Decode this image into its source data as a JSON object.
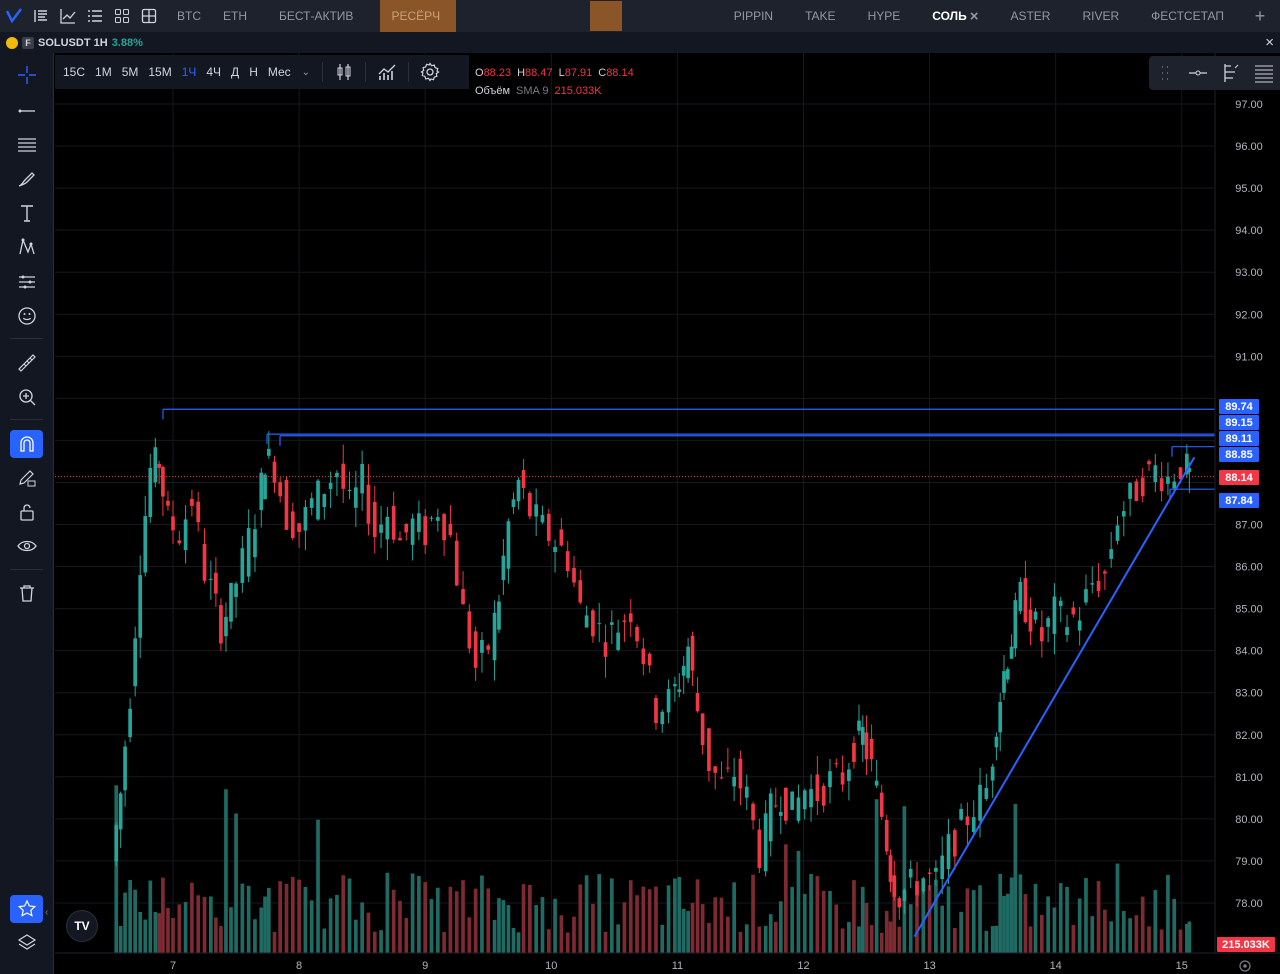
{
  "tabs": {
    "left": [
      {
        "label": "BTC",
        "state": ""
      },
      {
        "label": "ETH",
        "state": ""
      },
      {
        "label": "БЕСТ-АКТИВ",
        "state": ""
      },
      {
        "label": "РЕСЁРЧ",
        "state": "highlight"
      }
    ],
    "right": [
      {
        "label": "PIPPIN",
        "state": ""
      },
      {
        "label": "TAKE",
        "state": ""
      },
      {
        "label": "HYPE",
        "state": ""
      },
      {
        "label": "СОЛЬ",
        "state": "active"
      },
      {
        "label": "ASTER",
        "state": ""
      },
      {
        "label": "RIVER",
        "state": ""
      },
      {
        "label": "ФЕСТСЕТАП",
        "state": ""
      }
    ],
    "close_glyph": "×",
    "plus_glyph": "+"
  },
  "symbol": {
    "badge": "F",
    "name": "SOLUSDT 1H",
    "change": "3.88%",
    "close_glyph": "×"
  },
  "toolbar": {
    "intervals": [
      {
        "label": "15С",
        "active": false
      },
      {
        "label": "1М",
        "active": false
      },
      {
        "label": "5М",
        "active": false
      },
      {
        "label": "15М",
        "active": false
      },
      {
        "label": "1Ч",
        "active": true
      },
      {
        "label": "4Ч",
        "active": false
      },
      {
        "label": "Д",
        "active": false
      },
      {
        "label": "Н",
        "active": false
      },
      {
        "label": "Мес",
        "active": false
      }
    ],
    "icons": [
      "candles-icon",
      "indicators-icon",
      "settings-icon"
    ]
  },
  "legend": {
    "o_label": "O",
    "o_value": "88.23",
    "h_label": "H",
    "h_value": "88.47",
    "l_label": "L",
    "l_value": "87.91",
    "c_label": "C",
    "c_value": "88.14",
    "volume_label": "Объём",
    "sma_label": "SMA 9",
    "volume_value": "215.033K"
  },
  "tv_logo": "TV",
  "colors": {
    "up": "#26a69a",
    "down": "#f23645",
    "upvol": "#1f6b63",
    "downvol": "#7d2a33",
    "line": "#2962ff",
    "accent": "#8a5527"
  },
  "chart_data": {
    "type": "candlestick",
    "symbol": "SOLUSDT",
    "interval": "1H",
    "x_ticks": [
      "7",
      "8",
      "9",
      "10",
      "11",
      "12",
      "13",
      "14",
      "15"
    ],
    "y_ticks": [
      "97.00",
      "96.00",
      "95.00",
      "94.00",
      "93.00",
      "92.00",
      "91.00",
      "87.00",
      "86.00",
      "85.00",
      "84.00",
      "83.00",
      "82.00",
      "81.00",
      "80.00",
      "79.00",
      "78.00"
    ],
    "ylim": [
      77.0,
      98.0
    ],
    "horizontal_lines": [
      {
        "value": 89.74,
        "label": "89.74"
      },
      {
        "value": 89.15,
        "label": "89.15"
      },
      {
        "value": 89.11,
        "label": "89.11"
      },
      {
        "value": 88.85,
        "label": "88.85"
      },
      {
        "value": 87.84,
        "label": "87.84"
      }
    ],
    "last_price": {
      "value": 88.14,
      "label": "88.14"
    },
    "volume_last": {
      "label": "215.033K"
    },
    "trendline": {
      "from": {
        "x_day": 12.88,
        "price": 77.2
      },
      "to": {
        "x_day": 15.1,
        "price": 88.6
      }
    },
    "close_path": [
      [
        6.55,
        79.0
      ],
      [
        6.62,
        80.6
      ],
      [
        6.7,
        83.0
      ],
      [
        6.78,
        86.2
      ],
      [
        6.86,
        88.3
      ],
      [
        6.92,
        88.5
      ],
      [
        7.0,
        87.1
      ],
      [
        7.1,
        86.8
      ],
      [
        7.2,
        87.6
      ],
      [
        7.3,
        85.9
      ],
      [
        7.42,
        84.6
      ],
      [
        7.5,
        85.2
      ],
      [
        7.6,
        86.1
      ],
      [
        7.7,
        87.2
      ],
      [
        7.76,
        88.6
      ],
      [
        7.85,
        88.4
      ],
      [
        7.95,
        87.2
      ],
      [
        8.05,
        86.9
      ],
      [
        8.15,
        87.5
      ],
      [
        8.25,
        87.9
      ],
      [
        8.35,
        88.3
      ],
      [
        8.45,
        87.4
      ],
      [
        8.55,
        88.0
      ],
      [
        8.65,
        86.8
      ],
      [
        8.75,
        87.3
      ],
      [
        8.85,
        86.6
      ],
      [
        8.95,
        87.0
      ],
      [
        9.05,
        86.8
      ],
      [
        9.15,
        87.4
      ],
      [
        9.25,
        86.7
      ],
      [
        9.35,
        84.9
      ],
      [
        9.45,
        83.6
      ],
      [
        9.55,
        84.1
      ],
      [
        9.62,
        85.3
      ],
      [
        9.7,
        87.0
      ],
      [
        9.78,
        88.0
      ],
      [
        9.88,
        87.3
      ],
      [
        9.98,
        86.9
      ],
      [
        10.08,
        86.6
      ],
      [
        10.18,
        86.2
      ],
      [
        10.28,
        85.0
      ],
      [
        10.38,
        84.7
      ],
      [
        10.48,
        84.3
      ],
      [
        10.58,
        84.6
      ],
      [
        10.68,
        85.0
      ],
      [
        10.78,
        83.9
      ],
      [
        10.88,
        82.6
      ],
      [
        10.98,
        82.8
      ],
      [
        11.05,
        83.3
      ],
      [
        11.12,
        84.1
      ],
      [
        11.2,
        82.6
      ],
      [
        11.3,
        81.3
      ],
      [
        11.4,
        80.8
      ],
      [
        11.5,
        81.1
      ],
      [
        11.6,
        80.5
      ],
      [
        11.7,
        79.2
      ],
      [
        11.78,
        80.2
      ],
      [
        11.86,
        80.6
      ],
      [
        11.96,
        80.2
      ],
      [
        12.06,
        80.7
      ],
      [
        12.16,
        80.6
      ],
      [
        12.26,
        80.9
      ],
      [
        12.36,
        81.0
      ],
      [
        12.44,
        81.8
      ],
      [
        12.5,
        82.0
      ],
      [
        12.58,
        81.2
      ],
      [
        12.66,
        80.1
      ],
      [
        12.72,
        78.8
      ],
      [
        12.8,
        78.2
      ],
      [
        12.9,
        78.4
      ],
      [
        13.0,
        78.6
      ],
      [
        13.1,
        78.5
      ],
      [
        13.2,
        79.3
      ],
      [
        13.3,
        79.8
      ],
      [
        13.4,
        80.3
      ],
      [
        13.5,
        80.7
      ],
      [
        13.56,
        82.4
      ],
      [
        13.62,
        83.5
      ],
      [
        13.68,
        84.3
      ],
      [
        13.76,
        85.3
      ],
      [
        13.84,
        84.8
      ],
      [
        13.94,
        84.3
      ],
      [
        14.04,
        84.9
      ],
      [
        14.14,
        84.7
      ],
      [
        14.24,
        84.9
      ],
      [
        14.34,
        85.6
      ],
      [
        14.44,
        85.8
      ],
      [
        14.54,
        87.2
      ],
      [
        14.64,
        87.6
      ],
      [
        14.74,
        88.1
      ],
      [
        14.84,
        88.3
      ],
      [
        14.94,
        88.1
      ],
      [
        15.04,
        88.4
      ],
      [
        15.08,
        88.14
      ]
    ],
    "grid": true
  }
}
